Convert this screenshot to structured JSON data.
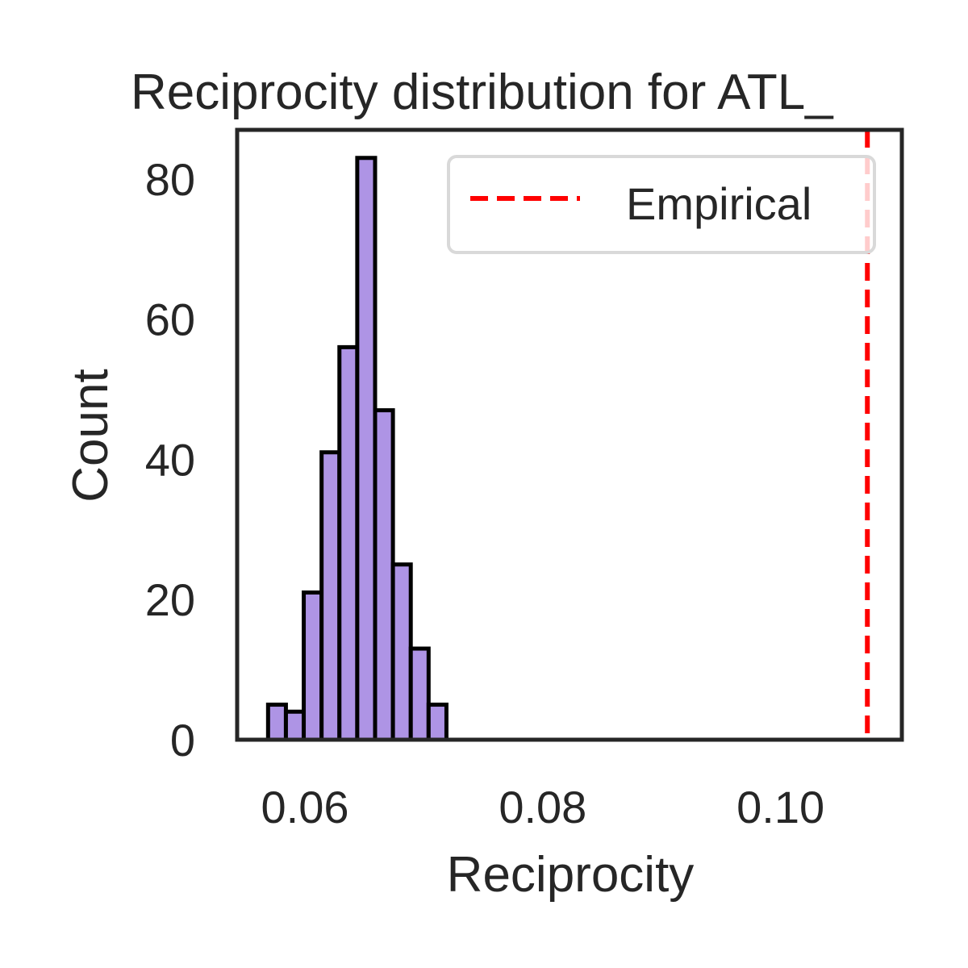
{
  "chart_data": {
    "type": "bar",
    "title": "Reciprocity distribution for ATL_",
    "xlabel": "Reciprocity",
    "ylabel": "Count",
    "xlim": [
      0.0543,
      0.1102
    ],
    "ylim": [
      0,
      87
    ],
    "xticks": [
      {
        "value": 0.06,
        "label": "0.06"
      },
      {
        "value": 0.08,
        "label": "0.08"
      },
      {
        "value": 0.1,
        "label": "0.10"
      }
    ],
    "yticks": [
      {
        "value": 0,
        "label": "0"
      },
      {
        "value": 20,
        "label": "20"
      },
      {
        "value": 40,
        "label": "40"
      },
      {
        "value": 60,
        "label": "60"
      },
      {
        "value": 80,
        "label": "80"
      }
    ],
    "bins": [
      {
        "x0": 0.0569,
        "x1": 0.0584,
        "count": 5
      },
      {
        "x0": 0.0584,
        "x1": 0.0599,
        "count": 4
      },
      {
        "x0": 0.0599,
        "x1": 0.0614,
        "count": 21
      },
      {
        "x0": 0.0614,
        "x1": 0.0629,
        "count": 41
      },
      {
        "x0": 0.0629,
        "x1": 0.0644,
        "count": 56
      },
      {
        "x0": 0.0644,
        "x1": 0.0659,
        "count": 83
      },
      {
        "x0": 0.0659,
        "x1": 0.0674,
        "count": 47
      },
      {
        "x0": 0.0674,
        "x1": 0.0689,
        "count": 25
      },
      {
        "x0": 0.0689,
        "x1": 0.0704,
        "count": 13
      },
      {
        "x0": 0.0704,
        "x1": 0.0719,
        "count": 5
      }
    ],
    "bar_color": "#ae94e5",
    "bar_edge_color": "#000000",
    "empirical": {
      "name": "Empirical",
      "value": 0.1073,
      "color": "#ff0000",
      "style": "dashed"
    },
    "legend": {
      "position": "upper-right"
    },
    "grid": false
  }
}
